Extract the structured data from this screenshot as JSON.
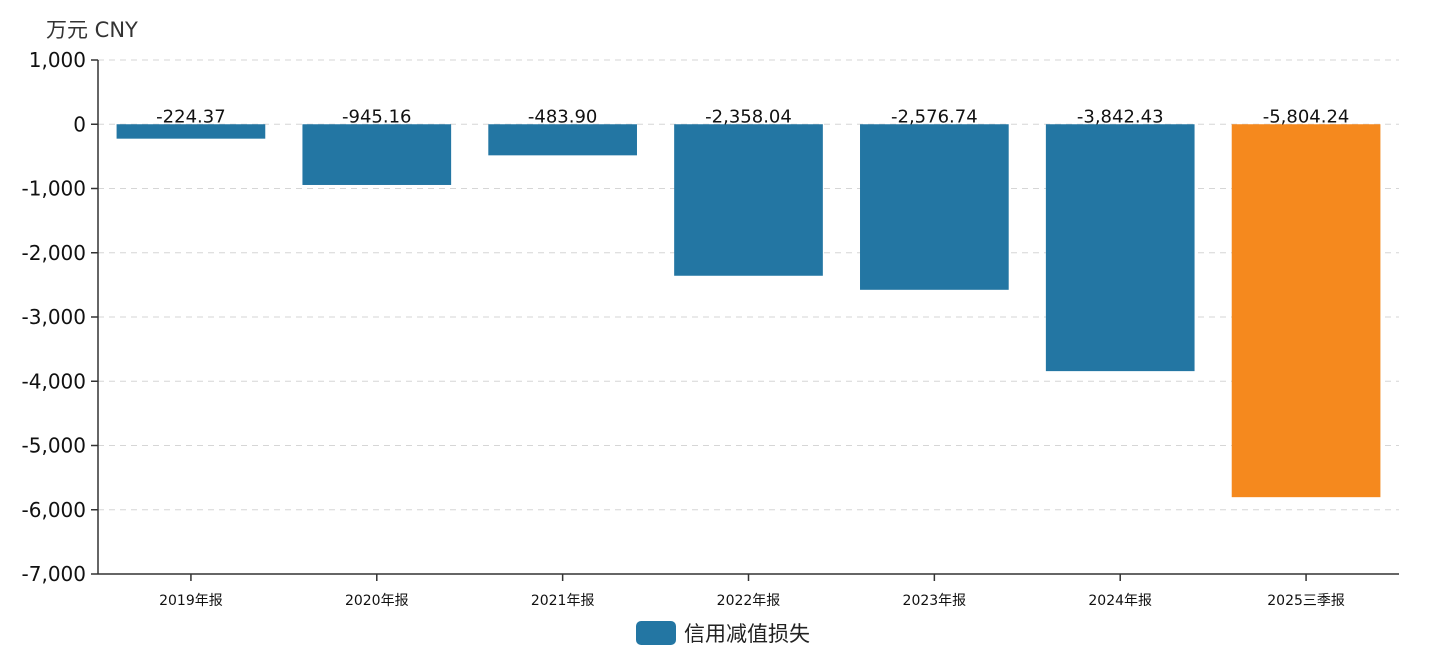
{
  "unit_label": "万元  CNY",
  "colors": {
    "primary": "#2376a3",
    "highlight": "#f5891e",
    "axis": "#333333",
    "grid": "#d6d6d6"
  },
  "chart_data": {
    "type": "bar",
    "categories": [
      "2019年报",
      "2020年报",
      "2021年报",
      "2022年报",
      "2023年报",
      "2024年报",
      "2025三季报"
    ],
    "series": [
      {
        "name": "信用减值损失",
        "values": [
          -224.37,
          -945.16,
          -483.9,
          -2358.04,
          -2576.74,
          -3842.43,
          -5804.24
        ],
        "value_labels": [
          "-224.37",
          "-945.16",
          "-483.90",
          "-2,358.04",
          "-2,576.74",
          "-3,842.43",
          "-5,804.24"
        ]
      }
    ],
    "highlight_index": 6,
    "ylim": [
      -7000,
      1000
    ],
    "yticks": [
      1000,
      0,
      -1000,
      -2000,
      -3000,
      -4000,
      -5000,
      -6000,
      -7000
    ],
    "ytick_labels": [
      "1,000",
      "0",
      "-1,000",
      "-2,000",
      "-3,000",
      "-4,000",
      "-5,000",
      "-6,000",
      "-7,000"
    ],
    "grid": true,
    "legend_position": "bottom-center"
  }
}
